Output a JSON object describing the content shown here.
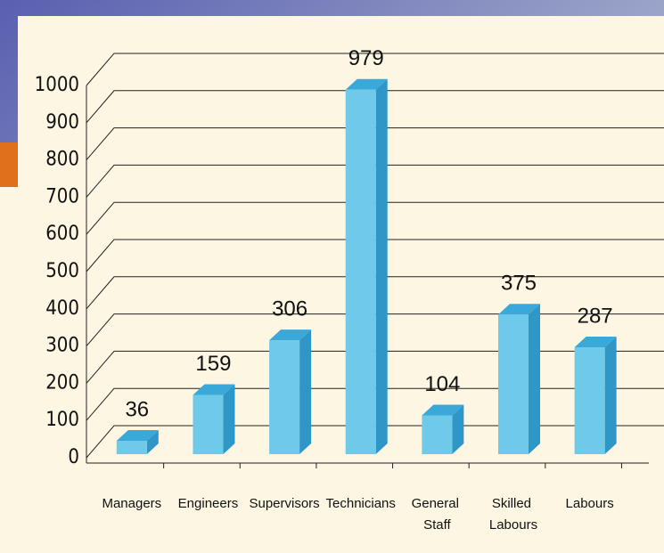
{
  "chart_data": {
    "type": "bar",
    "categories": [
      "Managers",
      "Engineers",
      "Supervisors",
      "Technicians",
      "General Staff",
      "Skilled Labours",
      "Labours"
    ],
    "values": [
      36,
      159,
      306,
      979,
      104,
      375,
      287
    ],
    "color": "#6fcaea",
    "ylim": [
      0,
      1000
    ],
    "yticks": [
      0,
      100,
      200,
      300,
      400,
      500,
      600,
      700,
      800,
      900,
      1000
    ],
    "grid": true
  }
}
